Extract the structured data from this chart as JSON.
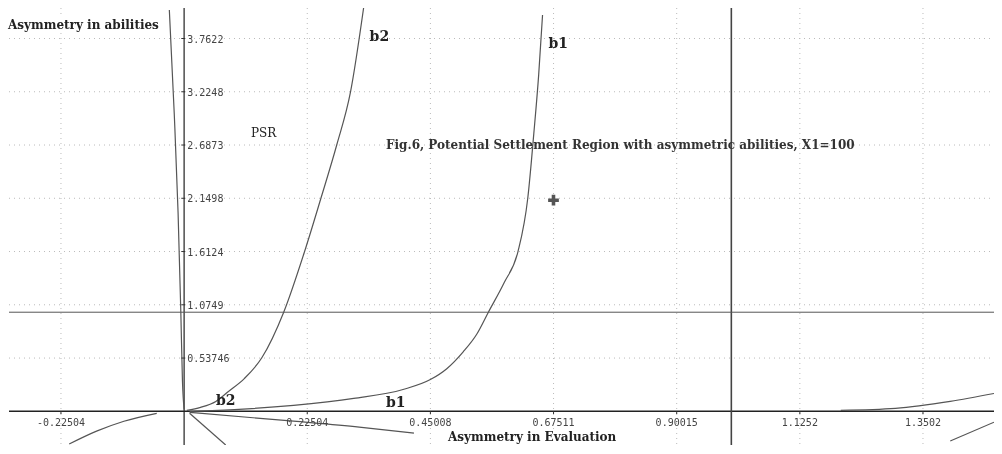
{
  "chart_data": {
    "type": "line",
    "title": "Fig.6, Potential Settlement Region with asymmetric abilities, X1=100",
    "xlabel": "Asymmetry in Evaluation",
    "ylabel": "Asymmetry in abilities",
    "xlim": [
      -0.32,
      1.48
    ],
    "ylim": [
      -0.34,
      4.07
    ],
    "xticks": [
      -0.22504,
      0.22504,
      0.45008,
      0.67511,
      0.90015,
      1.1252,
      1.3502
    ],
    "yticks": [
      0.53746,
      1.0749,
      1.6124,
      2.1498,
      2.6873,
      3.2248,
      3.7622
    ],
    "grid": true,
    "line_style": "solid",
    "series": [
      {
        "name": "b2",
        "color": "#555555",
        "x": [
          0.005,
          0.03,
          0.058,
          0.081,
          0.11,
          0.142,
          0.182,
          0.22,
          0.25,
          0.279,
          0.304,
          0.328
        ],
        "values": [
          0.01,
          0.04,
          0.1,
          0.2,
          0.33,
          0.54,
          1.0,
          1.61,
          2.15,
          2.69,
          3.22,
          4.07
        ]
      },
      {
        "name": "b1",
        "color": "#555555",
        "x": [
          0.01,
          0.1,
          0.2,
          0.31,
          0.4,
          0.45,
          0.48,
          0.51,
          0.535,
          0.556,
          0.585,
          0.61,
          0.628,
          0.639,
          0.648,
          0.655
        ],
        "values": [
          0,
          0.02,
          0.06,
          0.13,
          0.22,
          0.32,
          0.43,
          0.6,
          0.78,
          1.0,
          1.3,
          1.61,
          2.15,
          2.8,
          3.4,
          4.0
        ]
      },
      {
        "color": "#555555",
        "x": [
          -0.027,
          -0.018,
          -0.011,
          -0.006,
          -0.003,
          0
        ],
        "values": [
          4.05,
          3.0,
          2.0,
          1.0,
          0.3,
          0.02
        ]
      },
      {
        "color": "#555555",
        "x": [
          0.01,
          0.2,
          0.32,
          0.42
        ],
        "values": [
          -0.01,
          -0.1,
          -0.16,
          -0.22
        ]
      },
      {
        "color": "#555555",
        "x": [
          0.01,
          0.076
        ],
        "values": [
          -0.02,
          -0.34
        ]
      },
      {
        "color": "#555555",
        "x": [
          -0.21,
          -0.16,
          -0.11,
          -0.05
        ],
        "values": [
          -0.33,
          -0.2,
          -0.1,
          -0.02
        ]
      },
      {
        "color": "#555555",
        "x": [
          1.2,
          1.3,
          1.4,
          1.48
        ],
        "values": [
          0.01,
          0.03,
          0.1,
          0.18
        ]
      },
      {
        "color": "#555555",
        "x": [
          1.4,
          1.48
        ],
        "values": [
          -0.3,
          -0.11
        ]
      },
      {
        "type": "scatter",
        "color": "#555555",
        "marker": "cross",
        "x": [
          0.675
        ],
        "values": [
          2.13
        ]
      }
    ],
    "ref_lines": [
      {
        "axis": "x",
        "value": 1
      },
      {
        "axis": "y",
        "value": 1
      }
    ],
    "annotations": [
      "PSR",
      "b2",
      "b1"
    ]
  }
}
